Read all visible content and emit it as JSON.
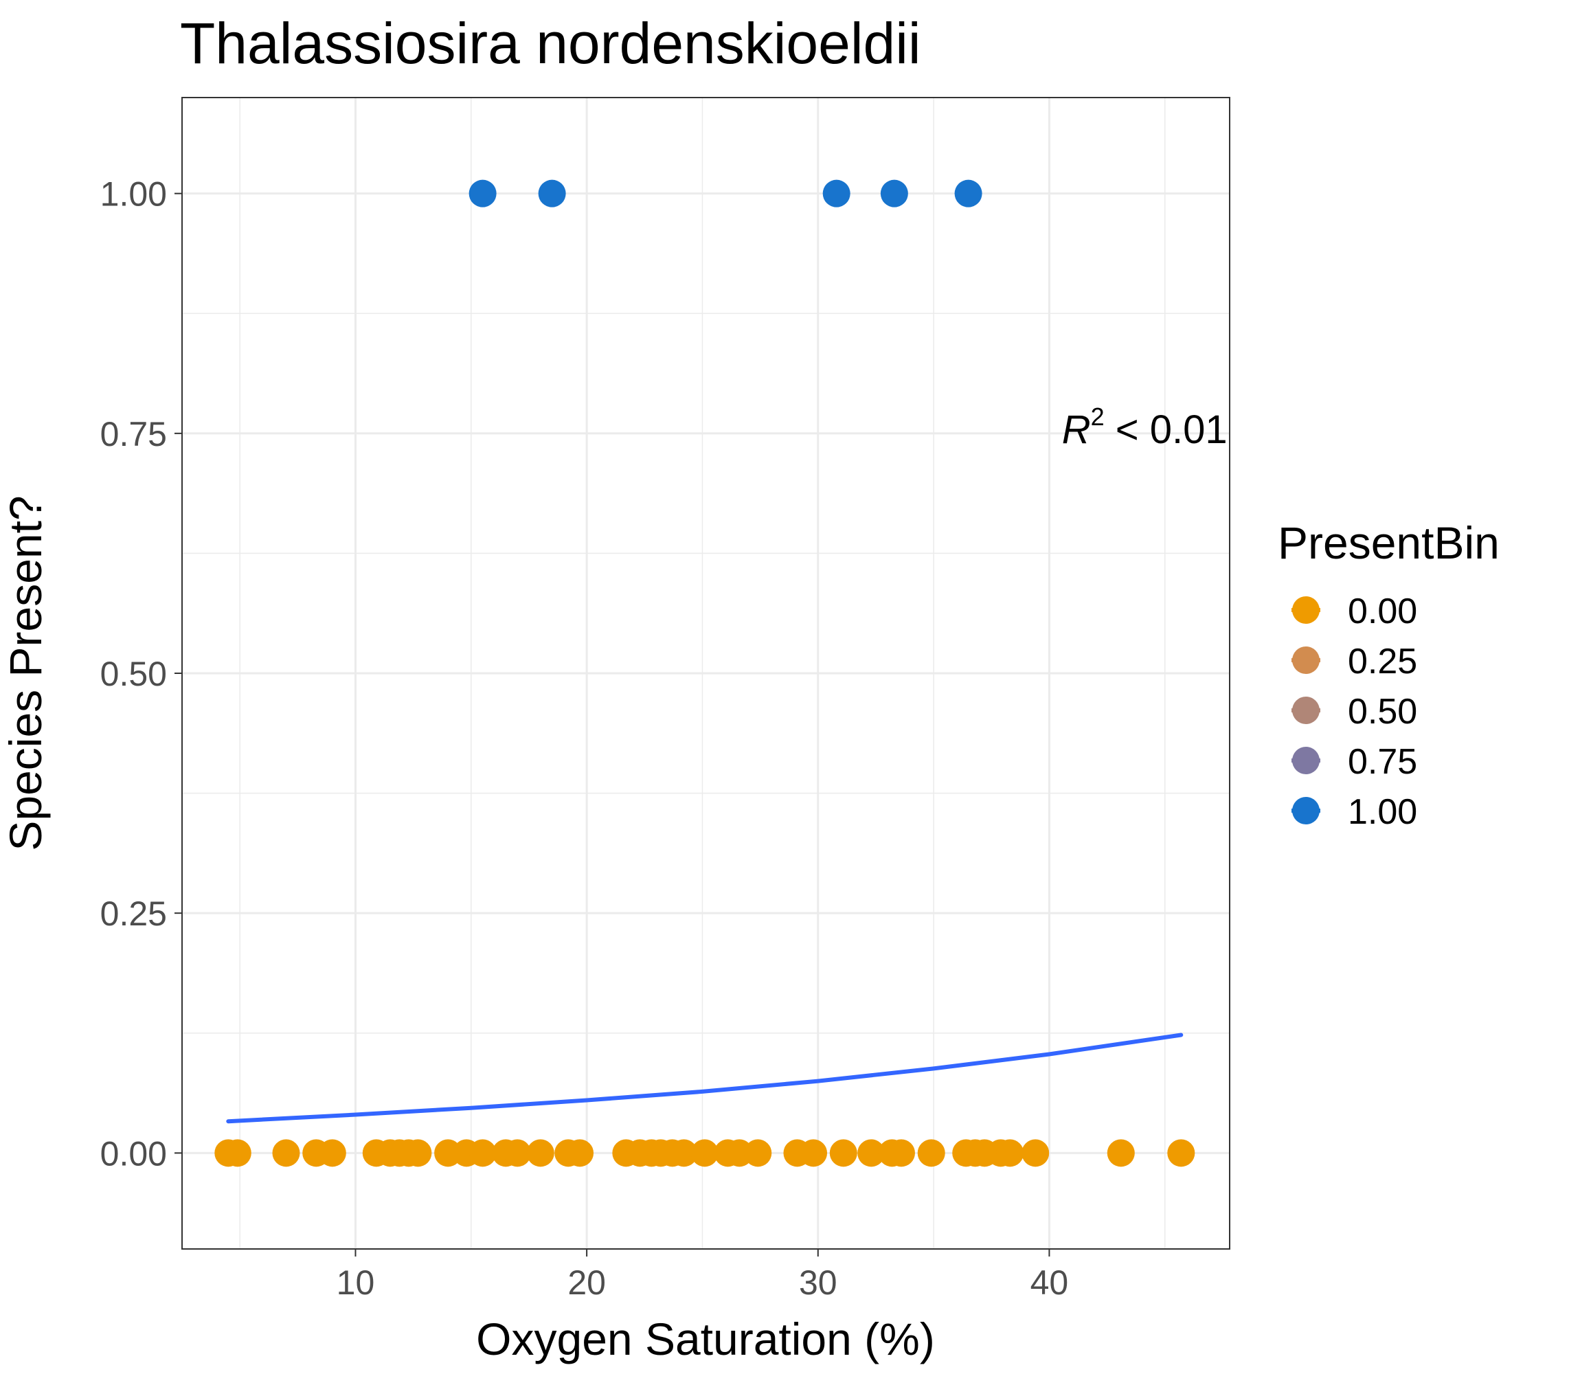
{
  "chart_data": {
    "type": "scatter",
    "title": "Thalassiosira nordenskioeldii",
    "xlabel": "Oxygen Saturation (%)",
    "ylabel": "Species Present?",
    "xlim": [
      2.5,
      47.8
    ],
    "ylim": [
      -0.1,
      1.1
    ],
    "x_ticks": [
      10,
      20,
      30,
      40
    ],
    "x_tick_labels": [
      "10",
      "20",
      "30",
      "40"
    ],
    "y_ticks": [
      0,
      0.25,
      0.5,
      0.75,
      1.0
    ],
    "y_tick_labels": [
      "0.00",
      "0.25",
      "0.50",
      "0.75",
      "1.00"
    ],
    "grid": true,
    "legend": {
      "title": "PresentBin",
      "position": "right",
      "entries": [
        {
          "label": "0.00",
          "color": "#EF9B00"
        },
        {
          "label": "0.25",
          "color": "#D28C4F"
        },
        {
          "label": "0.50",
          "color": "#B08677"
        },
        {
          "label": "0.75",
          "color": "#7E78A2"
        },
        {
          "label": "1.00",
          "color": "#1874CD"
        }
      ]
    },
    "annotation": {
      "r_symbol": "R",
      "superscript": "2",
      "comparator": " < 0.01",
      "x": 47.7,
      "y": 0.74
    },
    "series": [
      {
        "present_bin": "0.00",
        "color": "#EF9B00",
        "x": [
          4.5,
          4.9,
          7.0,
          8.3,
          9.0,
          10.9,
          11.5,
          11.9,
          12.3,
          12.7,
          14.0,
          14.8,
          15.5,
          16.5,
          17.0,
          18.0,
          19.2,
          19.7,
          21.7,
          22.3,
          22.8,
          23.2,
          23.7,
          24.2,
          25.1,
          26.1,
          26.6,
          27.4,
          29.1,
          29.8,
          31.1,
          32.3,
          33.2,
          33.6,
          34.9,
          36.4,
          36.8,
          37.2,
          37.9,
          38.3,
          39.4,
          43.1,
          45.7
        ],
        "y": [
          0,
          0,
          0,
          0,
          0,
          0,
          0,
          0,
          0,
          0,
          0,
          0,
          0,
          0,
          0,
          0,
          0,
          0,
          0,
          0,
          0,
          0,
          0,
          0,
          0,
          0,
          0,
          0,
          0,
          0,
          0,
          0,
          0,
          0,
          0,
          0,
          0,
          0,
          0,
          0,
          0,
          0,
          0
        ]
      },
      {
        "present_bin": "1.00",
        "color": "#1874CD",
        "x": [
          15.5,
          18.5,
          30.8,
          33.3,
          36.5
        ],
        "y": [
          1,
          1,
          1,
          1,
          1
        ]
      }
    ],
    "fit_line": {
      "color": "#3366FF",
      "x": [
        4.5,
        10,
        15,
        20,
        25,
        30,
        35,
        40,
        45.7
      ],
      "y": [
        0.033,
        0.04,
        0.047,
        0.055,
        0.064,
        0.075,
        0.088,
        0.103,
        0.123
      ]
    }
  }
}
